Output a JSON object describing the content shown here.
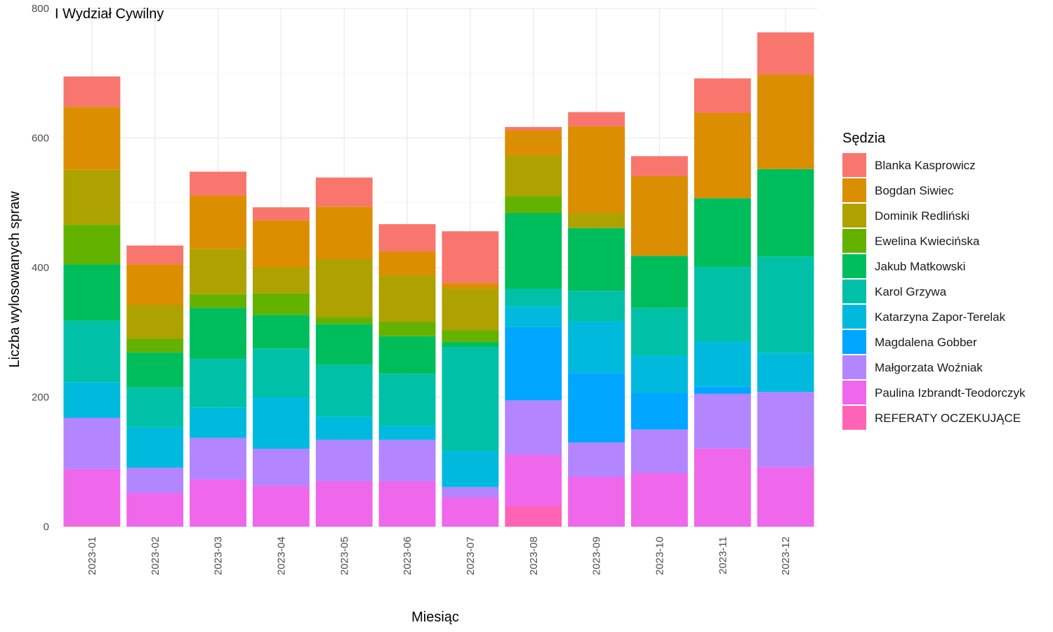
{
  "chart_data": {
    "type": "bar",
    "stacked": true,
    "title": "I Wydział Cywilny",
    "xlabel": "Miesiąc",
    "ylabel": "Liczba wylosowanych spraw",
    "ylim": [
      0,
      800
    ],
    "yticks": [
      0,
      200,
      400,
      600,
      800
    ],
    "grid": true,
    "legend_title": "Sędzia",
    "legend_position": "right",
    "categories": [
      "2023-01",
      "2023-02",
      "2023-03",
      "2023-04",
      "2023-05",
      "2023-06",
      "2023-07",
      "2023-08",
      "2023-09",
      "2023-10",
      "2023-11",
      "2023-12"
    ],
    "stack_order": [
      "REFERATY OCZEKUJĄCE",
      "Paulina Izbrandt-Teodorczyk",
      "Małgorzata Woźniak",
      "Magdalena Gobber",
      "Katarzyna Zapor-Terelak",
      "Karol Grzywa",
      "Jakub Matkowski",
      "Ewelina Kwiecińska",
      "Dominik Redliński",
      "Bogdan Siwiec",
      "Blanka Kasprowicz"
    ],
    "series": [
      {
        "name": "Blanka Kasprowicz",
        "color": "#F8766D",
        "values": [
          47,
          29,
          37,
          20,
          45,
          42,
          80,
          5,
          22,
          31,
          53,
          65
        ]
      },
      {
        "name": "Bogdan Siwiec",
        "color": "#DB8E00",
        "values": [
          97,
          63,
          82,
          73,
          81,
          37,
          9,
          39,
          134,
          123,
          132,
          146
        ]
      },
      {
        "name": "Dominik Redliński",
        "color": "#AEA200",
        "values": [
          85,
          52,
          70,
          40,
          90,
          72,
          64,
          63,
          23,
          0,
          0,
          0
        ]
      },
      {
        "name": "Ewelina Kwiecińska",
        "color": "#64B200",
        "values": [
          61,
          21,
          21,
          33,
          10,
          22,
          18,
          26,
          0,
          0,
          0,
          0
        ]
      },
      {
        "name": "Jakub Matkowski",
        "color": "#00BD5C",
        "values": [
          87,
          54,
          79,
          52,
          63,
          58,
          8,
          117,
          97,
          80,
          106,
          135
        ]
      },
      {
        "name": "Karol Grzywa",
        "color": "#00C1A7",
        "values": [
          95,
          62,
          75,
          75,
          80,
          80,
          160,
          27,
          47,
          74,
          116,
          149
        ]
      },
      {
        "name": "Katarzyna Zapor-Terelak",
        "color": "#00BADE",
        "values": [
          55,
          62,
          47,
          80,
          36,
          22,
          56,
          32,
          80,
          57,
          69,
          60
        ]
      },
      {
        "name": "Magdalena Gobber",
        "color": "#00A6FF",
        "values": [
          0,
          0,
          0,
          0,
          0,
          0,
          0,
          113,
          107,
          57,
          11,
          0
        ]
      },
      {
        "name": "Małgorzata Woźniak",
        "color": "#B385FF",
        "values": [
          79,
          39,
          64,
          57,
          64,
          64,
          16,
          84,
          53,
          67,
          84,
          116
        ]
      },
      {
        "name": "Paulina Izbrandt-Teodorczyk",
        "color": "#EF67EB",
        "values": [
          87,
          52,
          73,
          63,
          70,
          70,
          45,
          79,
          77,
          83,
          121,
          92
        ]
      },
      {
        "name": "REFERATY OCZEKUJĄCE",
        "color": "#FF63B6",
        "values": [
          2,
          0,
          0,
          0,
          0,
          0,
          0,
          32,
          0,
          0,
          0,
          0
        ]
      }
    ]
  }
}
